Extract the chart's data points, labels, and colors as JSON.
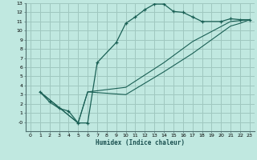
{
  "background_color": "#c0e8e0",
  "grid_color": "#a0c8c0",
  "line_color": "#1a6055",
  "marker_color": "#1a6055",
  "xlabel": "Humidex (Indice chaleur)",
  "xlim": [
    -0.5,
    23.5
  ],
  "ylim": [
    -1,
    13
  ],
  "xticks": [
    0,
    1,
    2,
    3,
    4,
    5,
    6,
    7,
    8,
    9,
    10,
    11,
    12,
    13,
    14,
    15,
    16,
    17,
    18,
    19,
    20,
    21,
    22,
    23
  ],
  "yticks": [
    0,
    1,
    2,
    3,
    4,
    5,
    6,
    7,
    8,
    9,
    10,
    11,
    12,
    13
  ],
  "curve1_x": [
    1,
    2,
    3,
    4,
    5,
    6,
    7,
    9,
    10,
    11,
    12,
    13,
    14,
    15,
    16,
    17,
    18,
    20,
    21,
    22,
    23
  ],
  "curve1_y": [
    3.3,
    2.2,
    1.5,
    1.2,
    -0.1,
    -0.1,
    6.5,
    8.7,
    10.8,
    11.5,
    12.3,
    12.9,
    12.9,
    12.1,
    12.0,
    11.5,
    11.0,
    11.0,
    11.3,
    11.2,
    11.2
  ],
  "curve2_x": [
    1,
    5,
    6,
    10,
    14,
    17,
    21,
    22,
    23
  ],
  "curve2_y": [
    3.3,
    -0.1,
    3.3,
    3.0,
    5.5,
    7.5,
    10.5,
    10.8,
    11.2
  ],
  "curve3_x": [
    1,
    5,
    6,
    10,
    14,
    17,
    21,
    22,
    23
  ],
  "curve3_y": [
    3.3,
    -0.1,
    3.3,
    3.8,
    6.5,
    8.8,
    11.0,
    11.1,
    11.2
  ]
}
